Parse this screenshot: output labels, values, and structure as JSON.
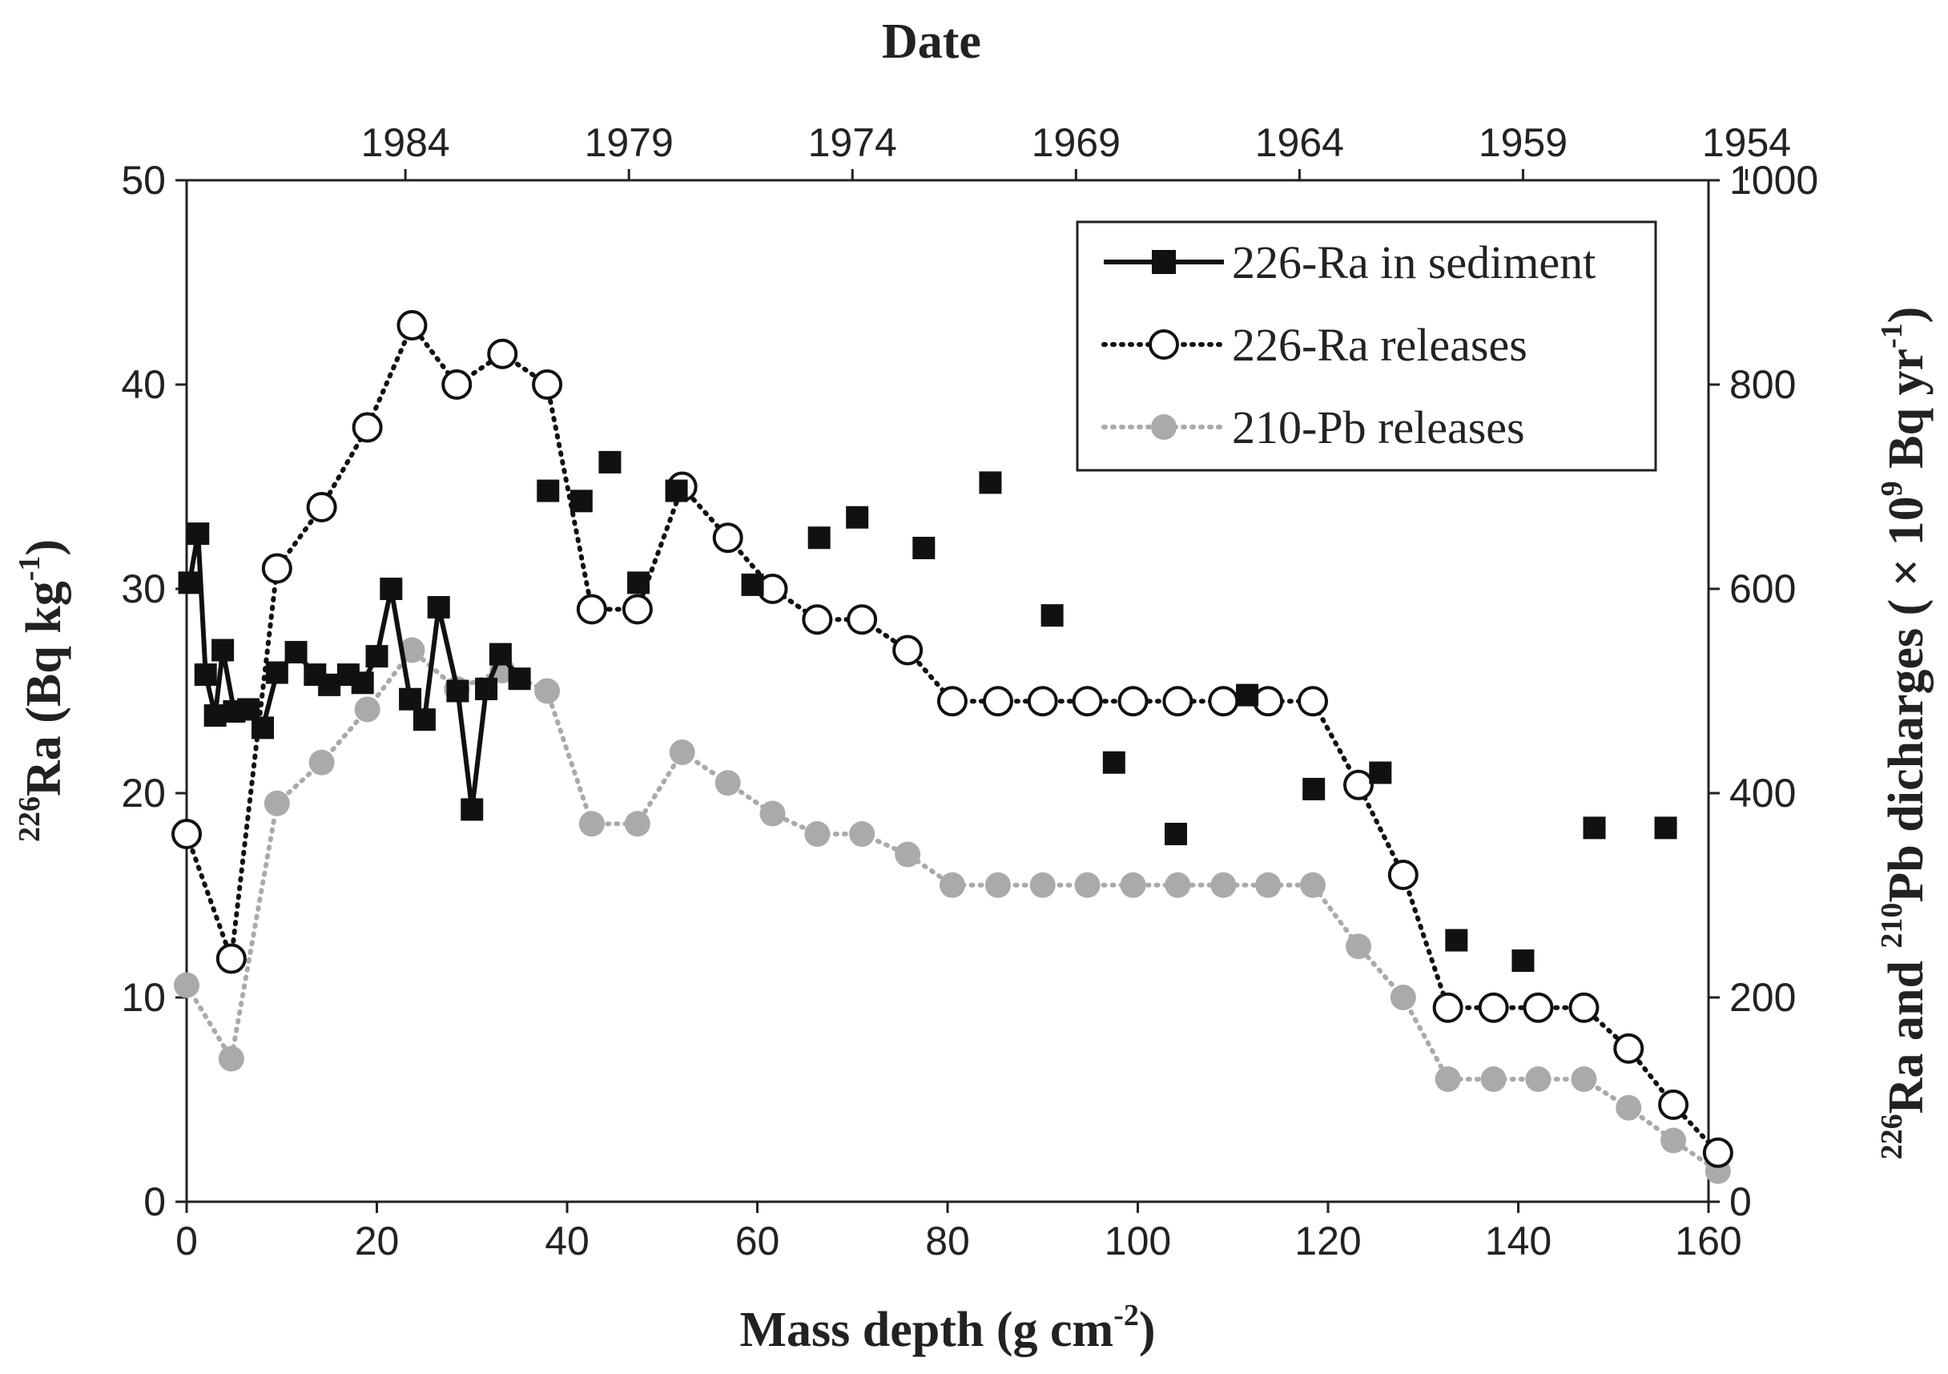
{
  "chart_data": {
    "type": "scatter",
    "title": "",
    "top_axis": {
      "label": "Date",
      "tick_labels": [
        {
          "label": "1984",
          "x": 23
        },
        {
          "label": "1979",
          "x": 46.5
        },
        {
          "label": "1974",
          "x": 70
        },
        {
          "label": "1969",
          "x": 93.5
        },
        {
          "label": "1964",
          "x": 117
        },
        {
          "label": "1959",
          "x": 140.5
        },
        {
          "label": "1954",
          "x": 164
        }
      ]
    },
    "xlabel": "Mass depth (g cm",
    "xlabel_sup": "-2",
    "xlabel_end": ")",
    "ylabel_left": {
      "sup": "226",
      "text": "Ra (Bq kg",
      "sup2": "-1",
      "end": ")"
    },
    "ylabel_right": {
      "sup": "226",
      "text": "Ra and ",
      "sup2": "210",
      "text2": "Pb dicharges ( × 10",
      "sup3": "9",
      "text3": " Bq yr",
      "sup4": "-1",
      "end": ")"
    },
    "xlim": [
      0,
      160
    ],
    "ylim_left": [
      0,
      50
    ],
    "ylim_right": [
      0,
      1000
    ],
    "x_ticks": [
      "0",
      "20",
      "40",
      "60",
      "80",
      "100",
      "120",
      "140",
      "160"
    ],
    "y_left_ticks": [
      "0",
      "10",
      "20",
      "30",
      "40",
      "50"
    ],
    "y_right_ticks": [
      "0",
      "200",
      "400",
      "600",
      "800",
      "1000"
    ],
    "legend": {
      "position": "top-right",
      "entries": [
        "226-Ra in sediment",
        "226-Ra releases",
        "210-Pb releases"
      ]
    },
    "series": [
      {
        "name": "226-Ra in sediment",
        "axis": "left",
        "style": "solid-square",
        "color": "#111111",
        "connected": [
          [
            0.3,
            30.3
          ],
          [
            1.2,
            32.7
          ],
          [
            2.0,
            25.8
          ],
          [
            3.0,
            23.8
          ],
          [
            3.8,
            27.0
          ],
          [
            5.0,
            24.0
          ],
          [
            6.5,
            24.1
          ],
          [
            8.0,
            23.2
          ],
          [
            9.5,
            25.9
          ],
          [
            11.5,
            26.9
          ],
          [
            13.5,
            25.8
          ],
          [
            15.0,
            25.3
          ],
          [
            17.0,
            25.8
          ],
          [
            18.5,
            25.4
          ],
          [
            20.0,
            26.7
          ],
          [
            21.5,
            30.0
          ],
          [
            23.5,
            24.6
          ],
          [
            25.0,
            23.6
          ],
          [
            26.5,
            29.1
          ],
          [
            28.5,
            25.0
          ],
          [
            30.0,
            19.2
          ],
          [
            31.5,
            25.1
          ],
          [
            33.0,
            26.8
          ],
          [
            35.0,
            25.6
          ]
        ],
        "points": [
          [
            38.0,
            34.8
          ],
          [
            41.5,
            34.3
          ],
          [
            44.5,
            36.2
          ],
          [
            47.5,
            30.3
          ],
          [
            51.5,
            34.8
          ],
          [
            59.5,
            30.2
          ],
          [
            66.5,
            32.5
          ],
          [
            70.5,
            33.5
          ],
          [
            77.5,
            32.0
          ],
          [
            84.5,
            35.2
          ],
          [
            91.0,
            28.7
          ],
          [
            97.5,
            21.5
          ],
          [
            104.0,
            18.0
          ],
          [
            111.5,
            24.8
          ],
          [
            118.5,
            20.2
          ],
          [
            125.5,
            21.0
          ],
          [
            133.5,
            12.8
          ],
          [
            140.5,
            11.8
          ],
          [
            148.0,
            18.3
          ],
          [
            155.5,
            18.3
          ]
        ]
      },
      {
        "name": "226-Ra releases",
        "axis": "right",
        "style": "dotted-open-circle",
        "color": "#111111",
        "points": [
          [
            0,
            360
          ],
          [
            4.7,
            238
          ],
          [
            9.5,
            620
          ],
          [
            14.2,
            680
          ],
          [
            19,
            758
          ],
          [
            23.7,
            858
          ],
          [
            28.4,
            800
          ],
          [
            33.2,
            830
          ],
          [
            37.9,
            800
          ],
          [
            42.6,
            580
          ],
          [
            47.4,
            580
          ],
          [
            52.1,
            700
          ],
          [
            56.9,
            650
          ],
          [
            61.6,
            600
          ],
          [
            66.3,
            570
          ],
          [
            71,
            570
          ],
          [
            75.8,
            540
          ],
          [
            80.5,
            490
          ],
          [
            85.3,
            490
          ],
          [
            90,
            490
          ],
          [
            94.7,
            490
          ],
          [
            99.5,
            490
          ],
          [
            104.2,
            490
          ],
          [
            109,
            490
          ],
          [
            113.7,
            490
          ],
          [
            118.4,
            490
          ],
          [
            123.2,
            408
          ],
          [
            127.9,
            320
          ],
          [
            132.6,
            190
          ],
          [
            137.4,
            190
          ],
          [
            142.1,
            190
          ],
          [
            146.9,
            190
          ],
          [
            151.6,
            150
          ],
          [
            156.3,
            95
          ],
          [
            161,
            48
          ]
        ]
      },
      {
        "name": "210-Pb releases",
        "axis": "right",
        "style": "dotted-filled-circle",
        "color": "#aaaaaa",
        "points": [
          [
            0,
            212
          ],
          [
            4.7,
            140
          ],
          [
            9.5,
            390
          ],
          [
            14.2,
            430
          ],
          [
            19,
            482
          ],
          [
            23.7,
            540
          ],
          [
            28.4,
            502
          ],
          [
            33.2,
            520
          ],
          [
            37.9,
            500
          ],
          [
            42.6,
            370
          ],
          [
            47.4,
            370
          ],
          [
            52.1,
            440
          ],
          [
            56.9,
            410
          ],
          [
            61.6,
            380
          ],
          [
            66.3,
            360
          ],
          [
            71,
            360
          ],
          [
            75.8,
            340
          ],
          [
            80.5,
            310
          ],
          [
            85.3,
            310
          ],
          [
            90,
            310
          ],
          [
            94.7,
            310
          ],
          [
            99.5,
            310
          ],
          [
            104.2,
            310
          ],
          [
            109,
            310
          ],
          [
            113.7,
            310
          ],
          [
            118.4,
            310
          ],
          [
            123.2,
            250
          ],
          [
            127.9,
            200
          ],
          [
            132.6,
            120
          ],
          [
            137.4,
            120
          ],
          [
            142.1,
            120
          ],
          [
            146.9,
            120
          ],
          [
            151.6,
            92
          ],
          [
            156.3,
            60
          ],
          [
            161,
            30
          ]
        ]
      }
    ]
  }
}
